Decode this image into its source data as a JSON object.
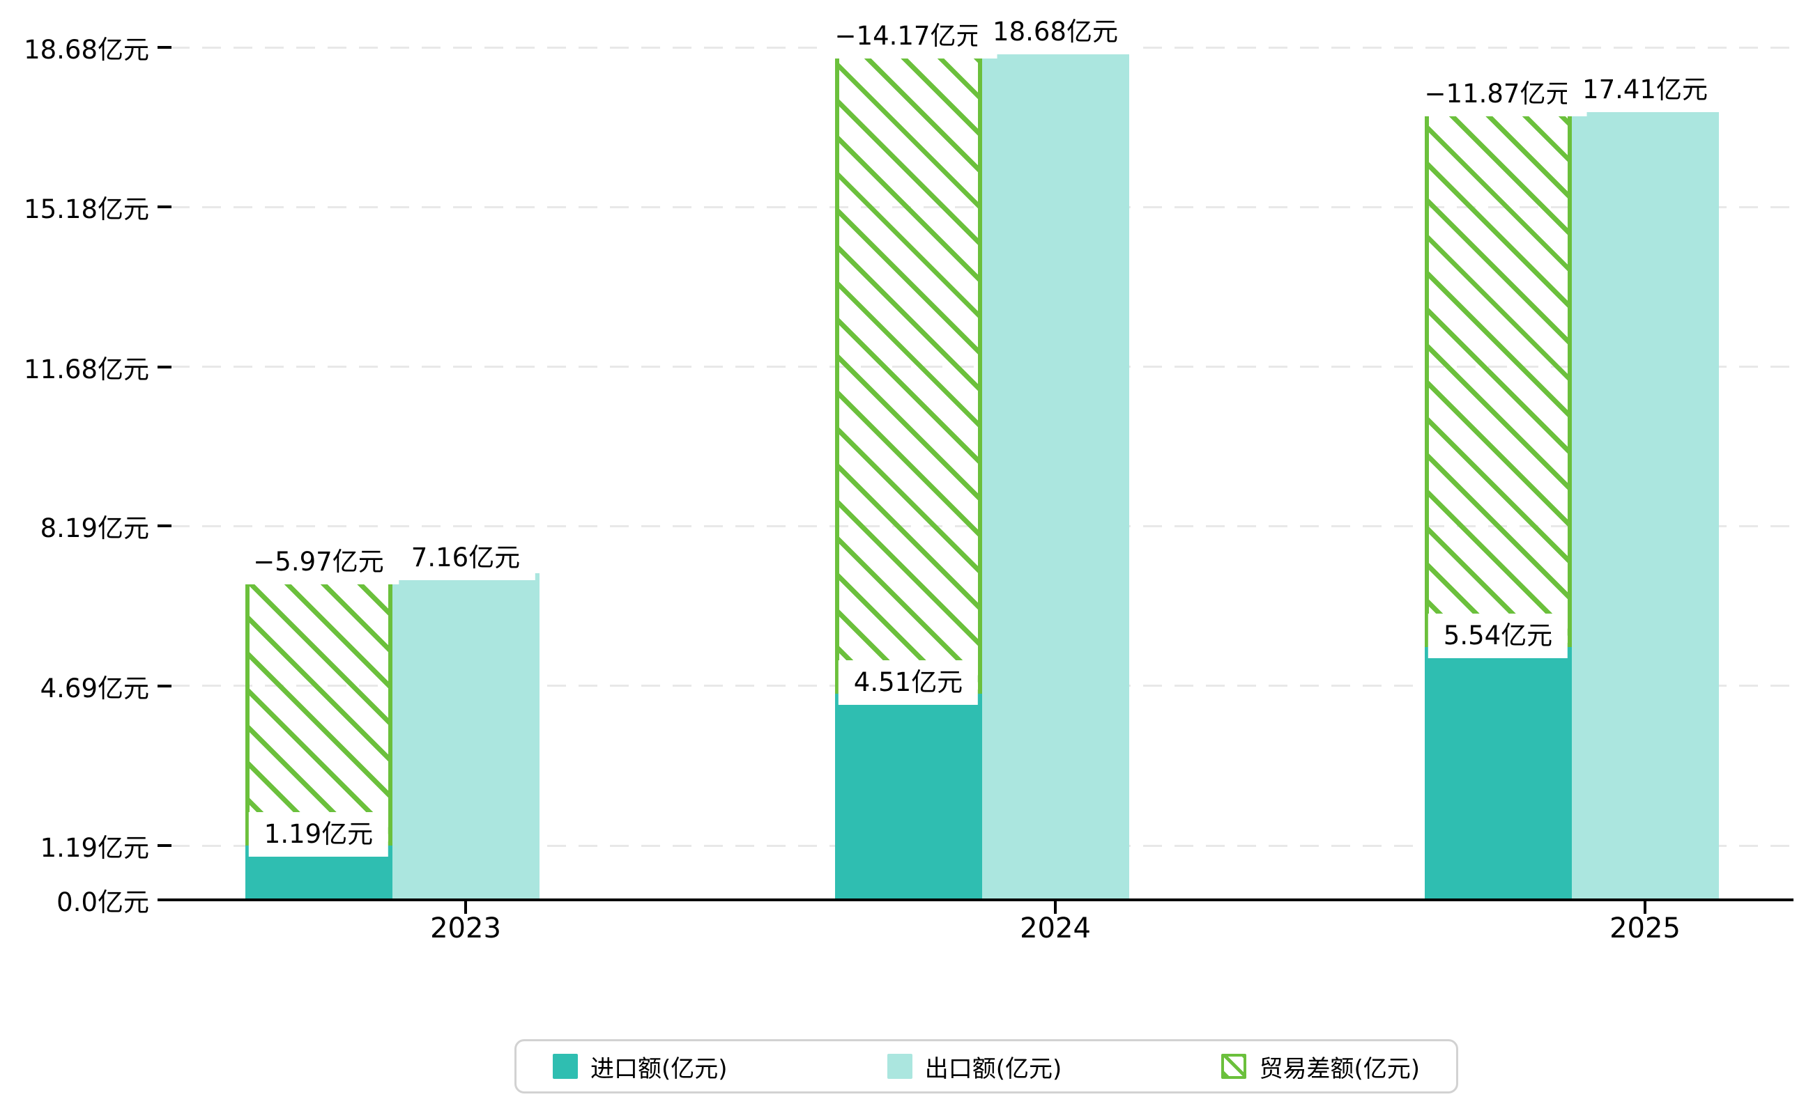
{
  "chart_data": {
    "type": "bar",
    "categories": [
      "2023",
      "2024",
      "2025"
    ],
    "series": [
      {
        "name": "进口额(亿元)",
        "values": [
          1.19,
          4.51,
          5.54
        ],
        "labels": [
          "1.19亿元",
          "4.51亿元",
          "5.54亿元"
        ],
        "color": "#2fbeb1",
        "style": "solid"
      },
      {
        "name": "出口额(亿元)",
        "values": [
          7.16,
          18.68,
          17.41
        ],
        "labels": [
          "7.16亿元",
          "18.68亿元",
          "17.41亿元"
        ],
        "color": "#abe6df",
        "style": "solid"
      },
      {
        "name": "贸易差额(亿元)",
        "values": [
          -5.97,
          -14.17,
          -11.87
        ],
        "labels": [
          "−5.97亿元",
          "−14.17亿元",
          "−11.87亿元"
        ],
        "color": "#6bc03c",
        "style": "hatch"
      }
    ],
    "y_ticks": [
      {
        "value": 0.0,
        "label": "0.0亿元"
      },
      {
        "value": 1.19,
        "label": "1.19亿元"
      },
      {
        "value": 4.69,
        "label": "4.69亿元"
      },
      {
        "value": 8.19,
        "label": "8.19亿元"
      },
      {
        "value": 11.68,
        "label": "11.68亿元"
      },
      {
        "value": 15.18,
        "label": "15.18亿元"
      },
      {
        "value": 18.68,
        "label": "18.68亿元"
      }
    ],
    "ylim": [
      0,
      18.68
    ],
    "xlabel": "",
    "ylabel": "",
    "title": "",
    "grid": true,
    "legend_position": "bottom",
    "legend": [
      "进口额(亿元)",
      "出口额(亿元)",
      "贸易差额(亿元)"
    ]
  },
  "colors": {
    "import_bar": "#2fbeb1",
    "export_bar": "#abe6df",
    "balance_hatch": "#6bc03c",
    "gridline": "#e8e8e8",
    "axis": "#000000",
    "text": "#000000",
    "label_box_bg": "#ffffff",
    "legend_border": "#d2d2d2"
  }
}
